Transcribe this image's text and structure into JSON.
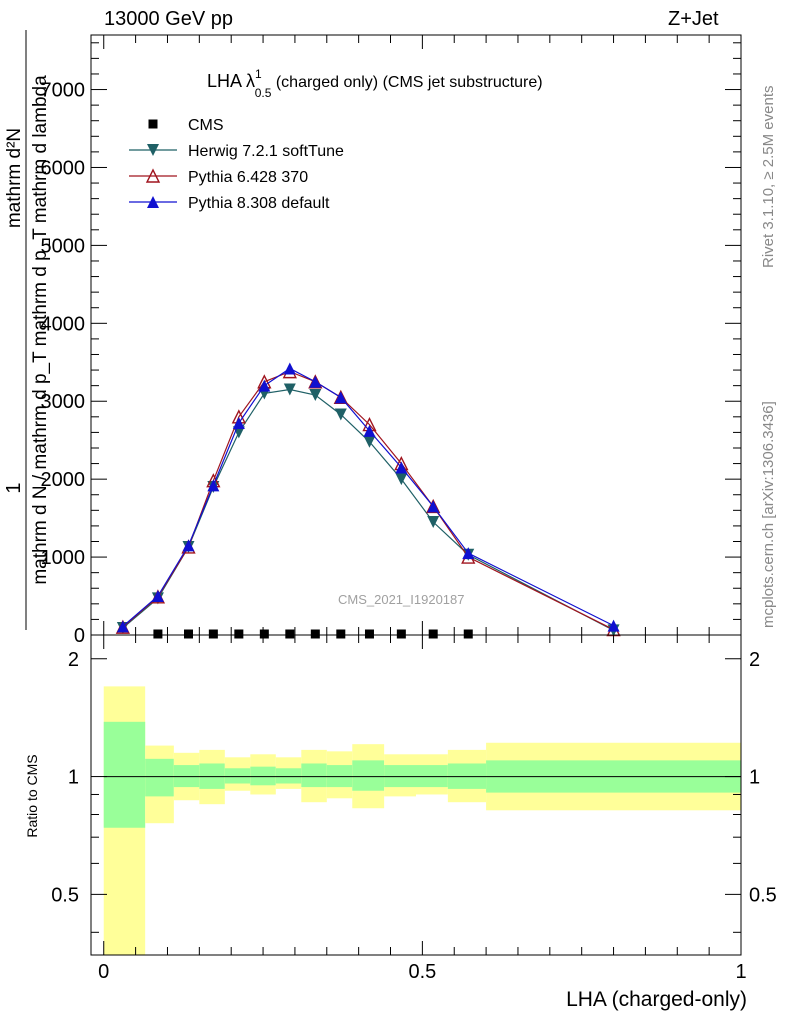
{
  "header": {
    "energy_label": "13000 GeV pp",
    "process_label": "Z+Jet"
  },
  "side_labels": {
    "rivet_label": "Rivet 3.1.10, ≥ 2.5M events",
    "mcplots_label": "mcplots.cern.ch [arXiv:1306.3436]"
  },
  "chart_data": {
    "type": "line",
    "title_main": "LHA λ",
    "title_sup": "1",
    "title_sub": "0.5",
    "title_rest": " (charged only) (CMS jet substructure)",
    "watermark": "CMS_2021_I1920187",
    "xlabel": "LHA (charged-only)",
    "ylabel_numerator": "1",
    "ylabel_frac_top": "mathrm d²N",
    "ylabel_frac_bottom": "mathrm d N / mathrm d p_T mathrm d p_T mathrm d lambda",
    "ratio_ylabel": "Ratio to CMS",
    "xlim": [
      -0.02,
      1.0
    ],
    "ylim": [
      0,
      7700
    ],
    "ratio_ylim": [
      0.35,
      2.3
    ],
    "ratio_log": true,
    "x_ticks": [
      0,
      0.5,
      1
    ],
    "x_tick_labels": [
      "0",
      "0.5",
      "1"
    ],
    "y_ticks": [
      0,
      1000,
      2000,
      3000,
      4000,
      5000,
      6000,
      7000
    ],
    "y_tick_labels": [
      "0",
      "1000",
      "2000",
      "3000",
      "4000",
      "5000",
      "6000",
      "7000"
    ],
    "ratio_ticks": [
      0.5,
      1,
      2
    ],
    "ratio_tick_labels": [
      "0.5",
      "1",
      "2"
    ],
    "legend_position": "top-left",
    "x": [
      0.03,
      0.085,
      0.133,
      0.172,
      0.212,
      0.252,
      0.292,
      0.332,
      0.372,
      0.417,
      0.467,
      0.517,
      0.572,
      0.8
    ],
    "bin_edges": [
      0.0,
      0.065,
      0.11,
      0.15,
      0.19,
      0.23,
      0.27,
      0.31,
      0.35,
      0.39,
      0.44,
      0.49,
      0.54,
      0.6,
      1.0
    ],
    "cms_values": [
      0,
      0,
      0,
      0,
      0,
      0,
      0,
      0,
      0,
      0,
      0,
      0,
      0,
      0
    ],
    "series": [
      {
        "name": "CMS",
        "marker": "square",
        "color": "#000000",
        "values": [
          0,
          0,
          0,
          0,
          0,
          0,
          0,
          0,
          0,
          0,
          0,
          0,
          0,
          0
        ]
      },
      {
        "name": "Herwig 7.2.1 softTune",
        "marker": "triangle-down",
        "color": "#1f6066",
        "values": [
          90,
          470,
          1130,
          1900,
          2600,
          3100,
          3150,
          3080,
          2830,
          2480,
          2000,
          1450,
          1030,
          60
        ]
      },
      {
        "name": "Pythia 6.428 370",
        "marker": "triangle-up-open",
        "color": "#a0141e",
        "values": [
          100,
          490,
          1130,
          1980,
          2800,
          3250,
          3380,
          3250,
          3050,
          2700,
          2200,
          1650,
          1000,
          70
        ]
      },
      {
        "name": "Pythia 8.308 default",
        "marker": "triangle-up",
        "color": "#1010d0",
        "values": [
          110,
          500,
          1150,
          1920,
          2720,
          3200,
          3420,
          3250,
          3050,
          2620,
          2150,
          1650,
          1050,
          120
        ]
      }
    ],
    "ratio_bands": {
      "yellow_low": [
        0.35,
        0.76,
        0.87,
        0.85,
        0.92,
        0.9,
        0.93,
        0.86,
        0.88,
        0.83,
        0.89,
        0.9,
        0.86,
        0.82
      ],
      "yellow_high": [
        1.7,
        1.2,
        1.15,
        1.17,
        1.12,
        1.14,
        1.12,
        1.17,
        1.16,
        1.21,
        1.14,
        1.14,
        1.17,
        1.22
      ],
      "green_low": [
        0.74,
        0.89,
        0.94,
        0.93,
        0.96,
        0.95,
        0.96,
        0.94,
        0.94,
        0.92,
        0.94,
        0.94,
        0.93,
        0.91
      ],
      "green_high": [
        1.38,
        1.11,
        1.07,
        1.08,
        1.05,
        1.06,
        1.05,
        1.08,
        1.07,
        1.1,
        1.07,
        1.07,
        1.08,
        1.1
      ]
    },
    "colors": {
      "yellow_band": "#ffff99",
      "green_band": "#99ff99",
      "axis": "#000000",
      "watermark": "#a0a0a0"
    }
  }
}
